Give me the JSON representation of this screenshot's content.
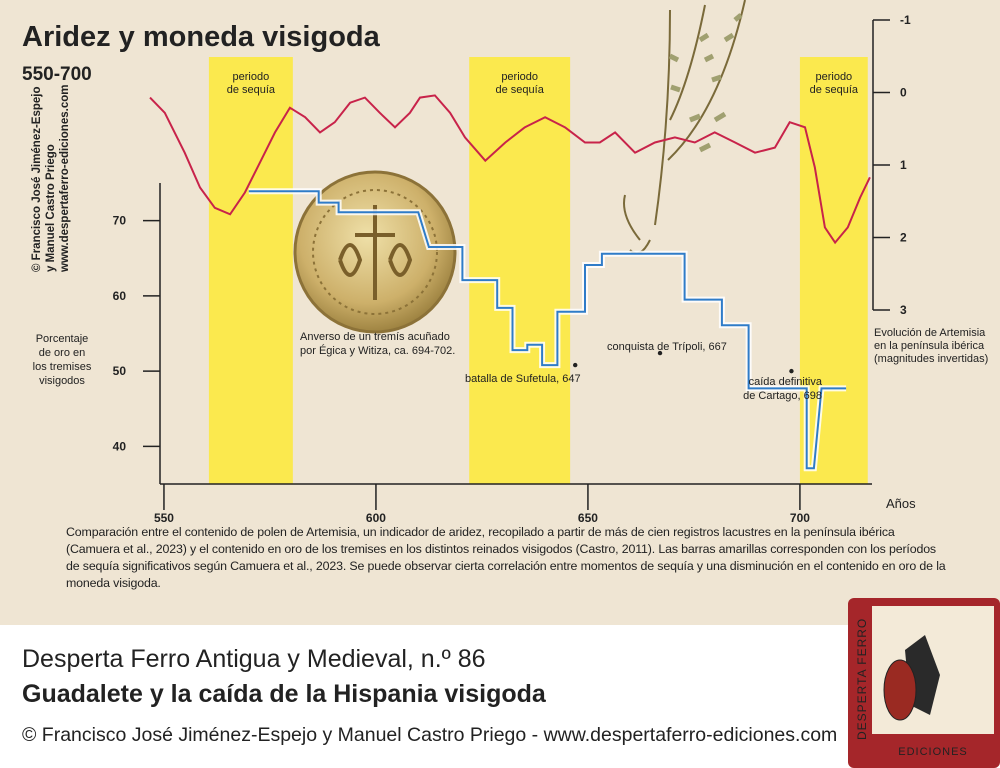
{
  "chart_data": {
    "type": "line",
    "title": "Aridez y moneda visigoda",
    "subtitle": "550-700",
    "credit": [
      "© Francisco José Jiménez-Espejo",
      "y Manuel Castro Priego",
      "www.despertaferro-ediciones.com"
    ],
    "xlabel": "Años",
    "xlim": [
      546,
      717
    ],
    "xticks": [
      550,
      600,
      650,
      700
    ],
    "ylim": [
      35,
      75
    ],
    "yticks": [
      40,
      50,
      60,
      70
    ],
    "ylabel": [
      "Porcentaje",
      "de oro en",
      "los tremises",
      "visigodos"
    ],
    "y2lim": [
      -1,
      3
    ],
    "y2ticks": [
      -1,
      0,
      1,
      2,
      3
    ],
    "y2label": [
      "Evolución de Artemisia",
      "en la península ibérica",
      "(magnitudes invertidas)"
    ],
    "bands": [
      {
        "from": 560.6,
        "to": 580.4,
        "label": [
          "periodo",
          "de sequía"
        ]
      },
      {
        "from": 622,
        "to": 645.8,
        "label": [
          "periodo",
          "de sequía"
        ]
      },
      {
        "from": 700,
        "to": 716,
        "label": [
          "periodo",
          "de sequía"
        ]
      }
    ],
    "band_color": "#fbe94e",
    "series": [
      {
        "name": "Artemisia",
        "axis": "y2",
        "color": "#c8234a",
        "x": [
          546.7,
          550.2,
          554.9,
          558.5,
          562,
          565.6,
          569.1,
          572.6,
          576.2,
          579.7,
          583.3,
          586.8,
          590.3,
          593.9,
          597.4,
          600.9,
          604.5,
          608,
          610.4,
          613.9,
          617.5,
          621,
          625.8,
          630.5,
          635.1,
          639.9,
          644.6,
          649.3,
          652.8,
          656.4,
          661.1,
          665.8,
          670.5,
          675.2,
          679.9,
          684.7,
          689.4,
          694.1,
          697.6,
          701.2,
          703.5,
          705.9,
          708.3,
          711.3,
          714.2,
          716.5
        ],
        "values": [
          0.07,
          0.28,
          0.83,
          1.31,
          1.59,
          1.68,
          1.38,
          0.97,
          0.55,
          0.21,
          0.34,
          0.55,
          0.41,
          0.14,
          0.07,
          0.28,
          0.48,
          0.28,
          0.07,
          0.04,
          0.28,
          0.62,
          0.94,
          0.69,
          0.48,
          0.34,
          0.48,
          0.69,
          0.69,
          0.55,
          0.83,
          0.69,
          0.62,
          0.69,
          0.55,
          0.69,
          0.83,
          0.76,
          0.41,
          0.48,
          1.03,
          1.86,
          2.07,
          1.86,
          1.45,
          1.17
        ]
      },
      {
        "name": "oro",
        "axis": "y",
        "color": "#2f7cc8",
        "x": [
          570,
          586.5,
          586.5,
          591.2,
          591.2,
          610,
          612.5,
          620.4,
          620.4,
          628.6,
          628.6,
          632.2,
          632.2,
          635.7,
          635.7,
          639.2,
          639.2,
          642.8,
          642.8,
          649.3,
          649.3,
          653.3,
          653.3,
          672.8,
          672.8,
          681.6,
          681.6,
          687.9,
          687.9,
          701.6,
          701.6,
          703.3,
          705.1,
          710.9
        ],
        "values": [
          73.9,
          73.9,
          72.4,
          72.4,
          71.1,
          71.1,
          66.5,
          66.5,
          62.1,
          62.1,
          58.4,
          58.4,
          52.8,
          52.8,
          53.5,
          53.5,
          50.8,
          50.8,
          57.9,
          57.9,
          64.1,
          64.1,
          65.6,
          65.6,
          59.5,
          59.5,
          56.1,
          56.1,
          47.7,
          47.7,
          37.1,
          37.1,
          47.7,
          47.7
        ]
      }
    ],
    "annotations": [
      {
        "text": [
          "Anverso de un tremís acuñado",
          "por Égica y Witiza, ca. 694-702."
        ]
      },
      {
        "text": [
          "batalla de Sufetula, 647"
        ],
        "x": 647,
        "y": 50.8
      },
      {
        "text": [
          "conquista de Trípoli, 667"
        ],
        "x": 667,
        "y": 52.4
      },
      {
        "text": [
          "caída definitiva",
          "de Cartago, 698"
        ],
        "x": 698,
        "y": 50
      }
    ],
    "caption": "Comparación entre el contenido de polen de Artemisia, un indicador de aridez, recopilado a partir de más de cien registros lacustres en la península ibérica (Camuera et al., 2023) y el contenido en oro de los tremises en los distintos reinados visigodos (Castro, 2011). Las barras amarillas corresponden con los períodos de sequía significativos según Camuera et al., 2023. Se puede observar cierta correlación entre momentos de sequía y una disminución en el contenido en oro de la moneda visigoda."
  },
  "footer": {
    "line1": "Desperta Ferro Antigua y Medieval, n.º 86",
    "line2": "Guadalete y la caída de la Hispania visigoda",
    "line3": "© Francisco José Jiménez-Espejo y Manuel Castro Priego - www.despertaferro-ediciones.com",
    "logo_top": "DESPERTA FERRO",
    "logo_bottom": "EDICIONES"
  }
}
